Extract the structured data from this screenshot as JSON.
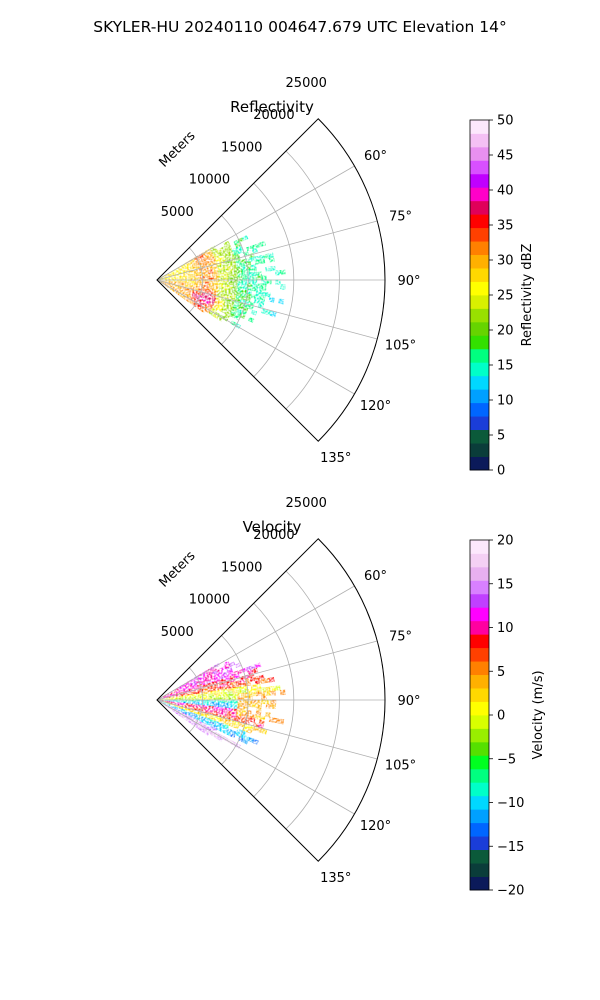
{
  "figure": {
    "title": "SKYLER-HU  20240110  004647.679 UTC Elevation 14°"
  },
  "chart_data": [
    {
      "type": "heatmap",
      "projection": "polar-sector",
      "title": "Reflectivity",
      "radial_label": "Meters",
      "radial_ticks": [
        5000,
        10000,
        15000,
        20000,
        25000
      ],
      "radial_tick_labels": [
        "5000",
        "10000",
        "15000",
        "20000",
        "25000"
      ],
      "rmax": 25000,
      "azimuth_ticks": [
        60,
        75,
        90,
        105,
        120,
        135
      ],
      "azimuth_tick_labels": [
        "60°",
        "75°",
        "90°",
        "105°",
        "120°",
        "135°"
      ],
      "azimuth_limits": [
        45,
        135
      ],
      "grid": true,
      "colorbar": {
        "label": "Reflectivity dBZ",
        "range": [
          0,
          50
        ],
        "ticks": [
          0,
          5,
          10,
          15,
          20,
          25,
          30,
          35,
          40,
          45,
          50
        ],
        "tick_labels": [
          "0",
          "5",
          "10",
          "15",
          "20",
          "25",
          "30",
          "35",
          "40",
          "45",
          "50"
        ],
        "colors": [
          "#0b1a5a",
          "#0a3d3a",
          "#0b5a3a",
          "#1a3dd8",
          "#0066ff",
          "#00a0ff",
          "#00d8ff",
          "#00ffc8",
          "#00ff80",
          "#33e000",
          "#66d400",
          "#99e000",
          "#d8f000",
          "#ffff00",
          "#ffd800",
          "#ffb000",
          "#ff8000",
          "#ff4000",
          "#ff0000",
          "#e0005a",
          "#ff00c8",
          "#c000ff",
          "#d850ff",
          "#e890f0",
          "#f4c0f4",
          "#fce8fc"
        ]
      },
      "echo_extent_m": {
        "min": 0,
        "max": 13000
      },
      "echo_azimuth_range_deg": [
        59,
        124
      ],
      "dominant_values_dbz": {
        "near_core": 28,
        "inner_band": 34,
        "outer_edge": 17
      }
    },
    {
      "type": "heatmap",
      "projection": "polar-sector",
      "title": "Velocity",
      "radial_label": "Meters",
      "radial_ticks": [
        5000,
        10000,
        15000,
        20000,
        25000
      ],
      "radial_tick_labels": [
        "5000",
        "10000",
        "15000",
        "20000",
        "25000"
      ],
      "rmax": 25000,
      "azimuth_ticks": [
        60,
        75,
        90,
        105,
        120,
        135
      ],
      "azimuth_tick_labels": [
        "60°",
        "75°",
        "90°",
        "105°",
        "120°",
        "135°"
      ],
      "azimuth_limits": [
        45,
        135
      ],
      "grid": true,
      "colorbar": {
        "label": "Velocity (m/s)",
        "range": [
          -20,
          20
        ],
        "ticks": [
          -20,
          -15,
          -10,
          -5,
          0,
          5,
          10,
          15,
          20
        ],
        "tick_labels": [
          "−20",
          "−15",
          "−10",
          "−5",
          "0",
          "5",
          "10",
          "15",
          "20"
        ],
        "colors": [
          "#0b1a5a",
          "#0a3d3a",
          "#0b5a3a",
          "#1a3dd8",
          "#0066ff",
          "#00a0ff",
          "#00d8ff",
          "#00ffc8",
          "#00ff80",
          "#00ff20",
          "#55e000",
          "#99ee00",
          "#d8ff00",
          "#ffff00",
          "#ffd800",
          "#ffb000",
          "#ff8000",
          "#ff4000",
          "#ff0000",
          "#ff00a0",
          "#ff00ff",
          "#c040ff",
          "#d880ff",
          "#e8b0f0",
          "#f4d0f4",
          "#fce8fc"
        ]
      },
      "echo_extent_m": {
        "min": 0,
        "max": 13000
      },
      "echo_azimuth_range_deg": [
        59,
        124
      ],
      "dominant_values_ms": {
        "north_band": 12,
        "center": 2,
        "south_band": -12,
        "southern_edge": 15
      }
    }
  ]
}
